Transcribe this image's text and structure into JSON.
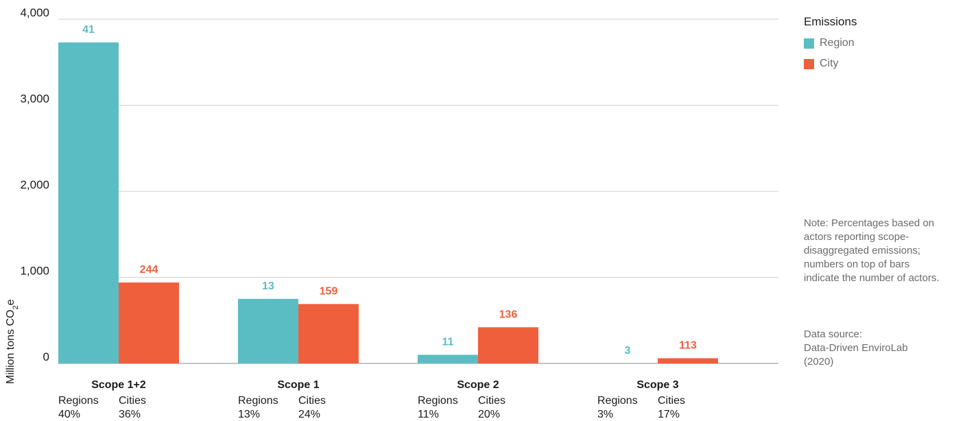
{
  "chart_data": {
    "type": "bar",
    "categories": [
      "Scope 1+2",
      "Scope 1",
      "Scope 2",
      "Scope 3"
    ],
    "series": [
      {
        "name": "Region",
        "color": "#5bbdc4",
        "values": [
          3730,
          750,
          100,
          0
        ],
        "labels": [
          "41",
          "13",
          "11",
          "3"
        ]
      },
      {
        "name": "City",
        "color": "#f05f3b",
        "values": [
          940,
          690,
          420,
          60
        ],
        "labels": [
          "244",
          "159",
          "136",
          "113"
        ]
      }
    ],
    "sublabels": [
      {
        "regions_label": "Regions",
        "cities_label": "Cities",
        "regions_pct": "40%",
        "cities_pct": "36%"
      },
      {
        "regions_label": "Regions",
        "cities_label": "Cities",
        "regions_pct": "13%",
        "cities_pct": "24%"
      },
      {
        "regions_label": "Regions",
        "cities_label": "Cities",
        "regions_pct": "11%",
        "cities_pct": "20%"
      },
      {
        "regions_label": "Regions",
        "cities_label": "Cities",
        "regions_pct": "3%",
        "cities_pct": "17%"
      }
    ],
    "ylabel_main": "Million tons CO",
    "ylabel_sub": "2",
    "ylabel_end": "e",
    "yticks": [
      0,
      1000,
      2000,
      3000,
      4000
    ],
    "ytick_labels": [
      "0",
      "1,000",
      "2,000",
      "3,000",
      "4,000"
    ],
    "ylim": [
      0,
      4000
    ],
    "grid": true,
    "legend_position": "top-right"
  },
  "legend": {
    "title": "Emissions",
    "items": [
      {
        "label": "Region",
        "color": "#5bbdc4"
      },
      {
        "label": "City",
        "color": "#f05f3b"
      }
    ]
  },
  "note": "Note: Percentages based on actors reporting scope-disaggregated emissions; numbers on top of bars indicate the number of actors.",
  "source": {
    "line1": "Data source:",
    "line2": "Data-Driven EnviroLab",
    "line3": "(2020)"
  }
}
